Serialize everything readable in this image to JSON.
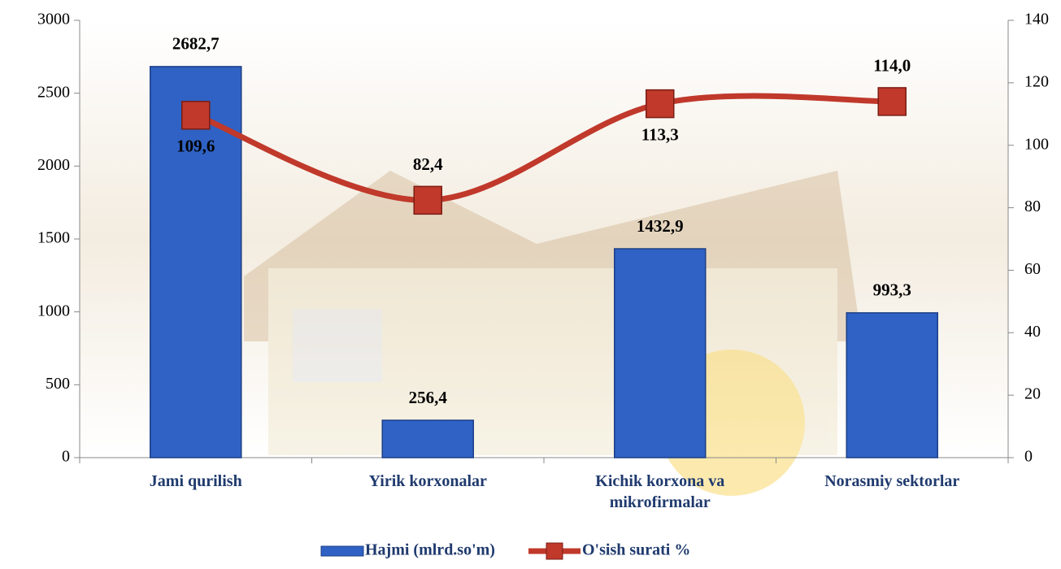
{
  "chart_data": {
    "type": "bar-line",
    "categories": [
      "Jami qurilish",
      "Yirik korxonalar",
      "Kichik korxona va mikrofirmalar",
      "Norasmiy sektorlar"
    ],
    "series": [
      {
        "name": "Hajmi (mlrd.so'm)",
        "type": "bar",
        "color": "#2f62c4",
        "values": [
          2682.7,
          256.4,
          1432.9,
          993.3
        ],
        "value_labels": [
          "2682,7",
          "256,4",
          "1432,9",
          "993,3"
        ]
      },
      {
        "name": "O'sish surati %",
        "type": "line",
        "axis": "y2",
        "color": "#c0392b",
        "values": [
          109.6,
          82.4,
          113.3,
          114.0
        ],
        "value_labels": [
          "109,6",
          "82,4",
          "113,3",
          "114,0"
        ]
      }
    ],
    "ylim": [
      0,
      3000
    ],
    "yticks": [
      0,
      500,
      1000,
      1500,
      2000,
      2500,
      3000
    ],
    "y2lim": [
      0,
      140
    ],
    "y2ticks": [
      0,
      20,
      40,
      60,
      80,
      100,
      120,
      140
    ],
    "legend": "bottom"
  }
}
